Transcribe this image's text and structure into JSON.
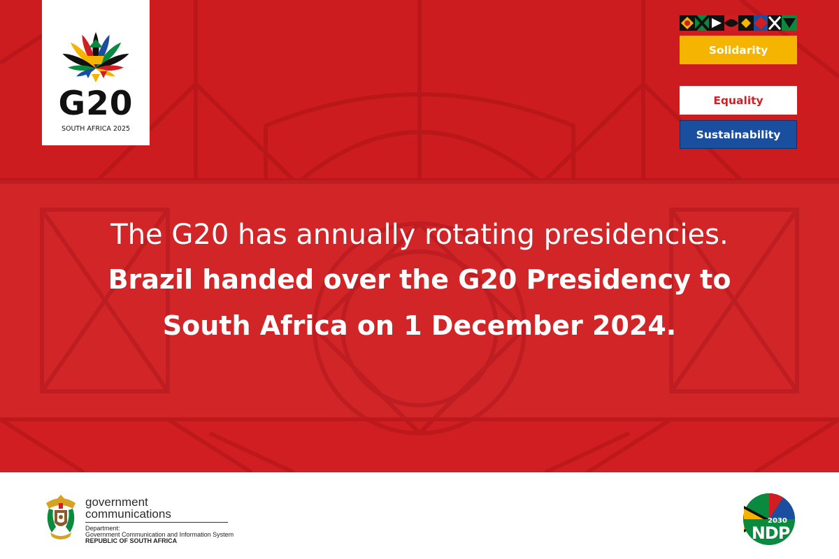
{
  "logo": {
    "wordmark": "G20",
    "subtitle": "SOUTH AFRICA 2025"
  },
  "values": {
    "items": [
      {
        "label": "Solidarity",
        "color": "#f4b400"
      },
      {
        "label": "Equality",
        "color": "#ffffff"
      },
      {
        "label": "Sustainability",
        "color": "#1a4fa0"
      }
    ]
  },
  "message": {
    "line1": "The G20 has annually rotating presidencies.",
    "line2": "Brazil handed over the G20 Presidency to",
    "line3": "South Africa on 1 December 2024."
  },
  "footer": {
    "gcis": {
      "title_line1": "government",
      "title_line2": "communications",
      "department_label": "Department:",
      "department_name": "Government Communication and Information System",
      "country": "REPUBLIC OF SOUTH AFRICA"
    },
    "ndp": {
      "year": "2030",
      "label": "NDP"
    }
  },
  "colors": {
    "banner_red": "#d11e22",
    "accent_yellow": "#f4b400",
    "accent_blue": "#1a4fa0"
  }
}
